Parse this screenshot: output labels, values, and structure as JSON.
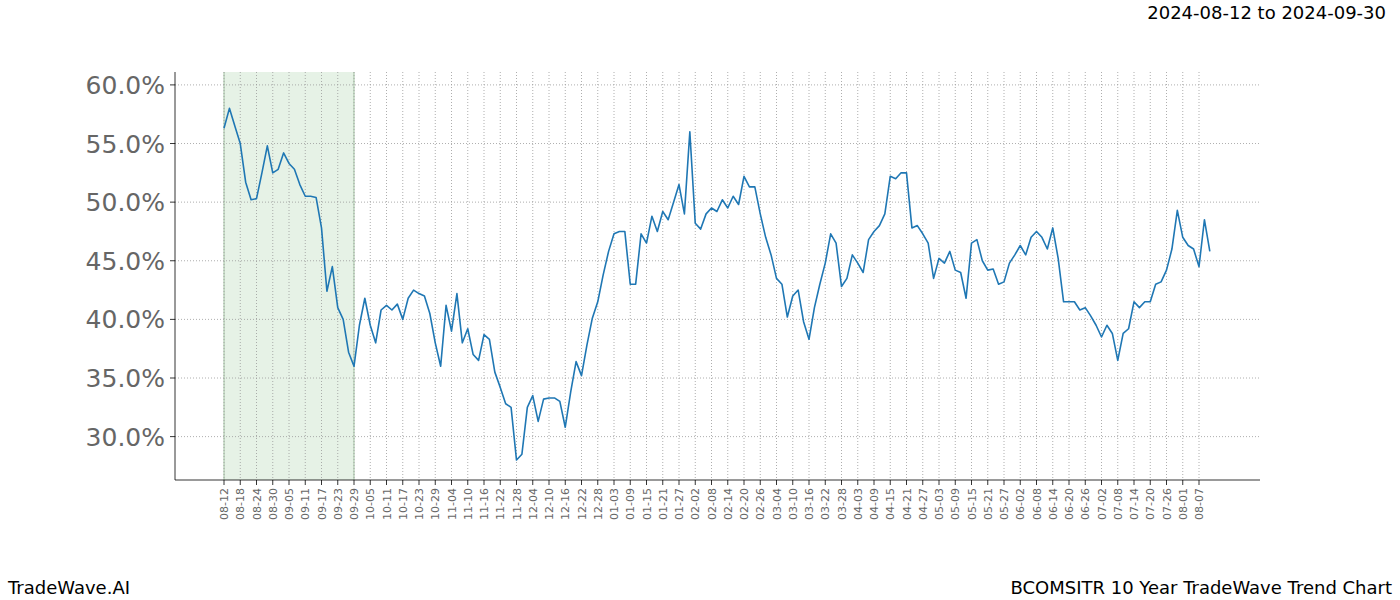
{
  "chart_data": {
    "type": "line",
    "title": "BCOMSITR 10 Year TradeWave Trend Chart",
    "subtitle": "2024-08-12 to 2024-09-30",
    "annotations": [
      "TradeWave.AI"
    ],
    "highlight": [
      "08-12",
      "09-29"
    ],
    "color": "#1f77b4",
    "grid": true,
    "ylim": [
      26.3,
      61.1
    ],
    "yticks": [
      {
        "value": 30,
        "label": "30.0%"
      },
      {
        "value": 35,
        "label": "35.0%"
      },
      {
        "value": 40,
        "label": "40.0%"
      },
      {
        "value": 45,
        "label": "45.0%"
      },
      {
        "value": 50,
        "label": "50.0%"
      },
      {
        "value": 55,
        "label": "55.0%"
      },
      {
        "value": 60,
        "label": "60.0%"
      }
    ],
    "categories": [
      "08-12",
      null,
      null,
      "08-18",
      null,
      null,
      "08-24",
      null,
      null,
      "08-30",
      null,
      null,
      "09-05",
      null,
      null,
      "09-11",
      null,
      null,
      "09-17",
      null,
      null,
      "09-23",
      null,
      null,
      "09-29",
      null,
      null,
      "10-05",
      null,
      null,
      "10-11",
      null,
      null,
      "10-17",
      null,
      null,
      "10-23",
      null,
      null,
      "10-29",
      null,
      null,
      "11-04",
      null,
      null,
      "11-10",
      null,
      null,
      "11-16",
      null,
      null,
      "11-22",
      null,
      null,
      "11-28",
      null,
      null,
      "12-04",
      null,
      null,
      "12-10",
      null,
      null,
      "12-16",
      null,
      null,
      "12-22",
      null,
      null,
      "12-28",
      null,
      null,
      "01-03",
      null,
      null,
      "01-09",
      null,
      null,
      "01-15",
      null,
      null,
      "01-21",
      null,
      null,
      "01-27",
      null,
      null,
      "02-02",
      null,
      null,
      "02-08",
      null,
      null,
      "02-14",
      null,
      null,
      "02-20",
      null,
      null,
      "02-26",
      null,
      null,
      "03-04",
      null,
      null,
      "03-10",
      null,
      null,
      "03-16",
      null,
      null,
      "03-22",
      null,
      null,
      "03-28",
      null,
      null,
      "04-03",
      null,
      null,
      "04-09",
      null,
      null,
      "04-15",
      null,
      null,
      "04-21",
      null,
      null,
      "04-27",
      null,
      null,
      "05-03",
      null,
      null,
      "05-09",
      null,
      null,
      "05-15",
      null,
      null,
      "05-21",
      null,
      null,
      "05-27",
      null,
      null,
      "06-02",
      null,
      null,
      "06-08",
      null,
      null,
      "06-14",
      null,
      null,
      "06-20",
      null,
      null,
      "06-26",
      null,
      null,
      "07-02",
      null,
      null,
      "07-08",
      null,
      null,
      "07-14",
      null,
      null,
      "07-20",
      null,
      null,
      "07-26",
      null,
      null,
      "08-01",
      null,
      null,
      "08-07",
      null,
      null
    ],
    "values": [
      56.3,
      58.0,
      56.5,
      55.0,
      51.7,
      50.2,
      50.3,
      52.5,
      54.8,
      52.5,
      52.8,
      54.2,
      53.3,
      52.8,
      51.5,
      50.5,
      50.5,
      50.4,
      47.8,
      42.4,
      44.5,
      41.0,
      40.0,
      37.2,
      36.0,
      39.5,
      41.8,
      39.5,
      38.0,
      40.8,
      41.2,
      40.8,
      41.3,
      40.0,
      41.8,
      42.5,
      42.2,
      42.0,
      40.5,
      38.0,
      36.0,
      41.2,
      39.0,
      42.2,
      38.0,
      39.2,
      37.0,
      36.5,
      38.7,
      38.3,
      35.5,
      34.2,
      32.8,
      32.5,
      28.0,
      28.5,
      32.5,
      33.5,
      31.3,
      33.2,
      33.3,
      33.3,
      33.0,
      30.8,
      33.8,
      36.4,
      35.2,
      37.8,
      40.1,
      41.5,
      43.8,
      45.8,
      47.3,
      47.5,
      47.5,
      43.0,
      43.0,
      47.3,
      46.5,
      48.8,
      47.5,
      49.2,
      48.5,
      50.0,
      51.5,
      49.0,
      56.0,
      48.2,
      47.7,
      49.0,
      49.5,
      49.2,
      50.2,
      49.5,
      50.5,
      49.8,
      52.2,
      51.3,
      51.3,
      49.0,
      47.0,
      45.5,
      43.5,
      43.0,
      40.2,
      42.0,
      42.5,
      39.8,
      38.3,
      41.0,
      43.0,
      44.8,
      47.3,
      46.5,
      42.8,
      43.5,
      45.5,
      44.8,
      44.0,
      46.8,
      47.5,
      48.0,
      49.0,
      52.2,
      52.0,
      52.5,
      52.5,
      47.8,
      48.0,
      47.3,
      46.5,
      43.5,
      45.2,
      44.8,
      45.8,
      44.2,
      44.0,
      41.8,
      46.5,
      46.8,
      45.0,
      44.2,
      44.3,
      43.0,
      43.2,
      44.8,
      45.5,
      46.3,
      45.5,
      47.0,
      47.5,
      47.0,
      46.0,
      47.8,
      45.2,
      41.5,
      41.5,
      41.5,
      40.8,
      41.0,
      40.3,
      39.5,
      38.5,
      39.5,
      38.8,
      36.5,
      38.8,
      39.2,
      41.5,
      41.0,
      41.5,
      41.5,
      43.0,
      43.2,
      44.2,
      46.0,
      49.3,
      47.0,
      46.3,
      46.0,
      44.5,
      48.5,
      45.8
    ]
  }
}
